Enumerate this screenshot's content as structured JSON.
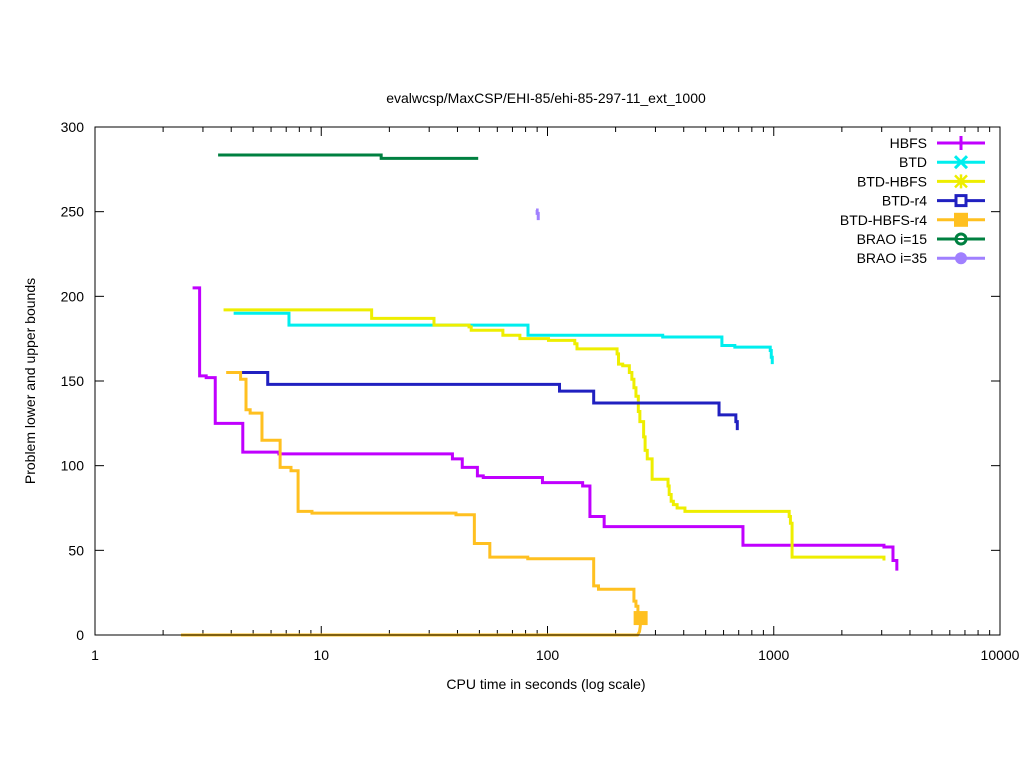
{
  "chart_data": {
    "type": "line",
    "title": "evalwcsp/MaxCSP/EHI-85/ehi-85-297-11_ext_1000",
    "xlabel": "CPU time in seconds (log scale)",
    "ylabel": "Problem lower and upper bounds",
    "xscale": "log",
    "xlim": [
      1,
      10000
    ],
    "ylim": [
      0,
      300
    ],
    "xticks": [
      {
        "v": 1,
        "label": "1"
      },
      {
        "v": 10,
        "label": "10"
      },
      {
        "v": 100,
        "label": "100"
      },
      {
        "v": 1000,
        "label": "1000"
      },
      {
        "v": 10000,
        "label": "10000"
      }
    ],
    "yticks": [
      {
        "v": 0,
        "label": "0"
      },
      {
        "v": 50,
        "label": "50"
      },
      {
        "v": 100,
        "label": "100"
      },
      {
        "v": 150,
        "label": "150"
      },
      {
        "v": 200,
        "label": "200"
      },
      {
        "v": 250,
        "label": "250"
      },
      {
        "v": 300,
        "label": "300"
      }
    ],
    "grid": false,
    "legend_position": "top-right",
    "series": [
      {
        "name": "HBFS",
        "color": "#c000ff",
        "marker": "plus",
        "points": [
          [
            2.7,
            205
          ],
          [
            2.9,
            153
          ],
          [
            3.1,
            152
          ],
          [
            3.4,
            125
          ],
          [
            4.5,
            108
          ],
          [
            6.5,
            107
          ],
          [
            38,
            104
          ],
          [
            42,
            99
          ],
          [
            49,
            94
          ],
          [
            52,
            93
          ],
          [
            95,
            90
          ],
          [
            143,
            88
          ],
          [
            154,
            70
          ],
          [
            178,
            64
          ],
          [
            731,
            53
          ],
          [
            3070,
            52
          ],
          [
            3365,
            44
          ],
          [
            3500,
            38
          ]
        ]
      },
      {
        "name": "BTD",
        "color": "#00eeee",
        "marker": "cross",
        "points": [
          [
            4.1,
            190
          ],
          [
            7.2,
            183
          ],
          [
            82,
            177
          ],
          [
            323,
            176
          ],
          [
            590,
            171
          ],
          [
            673,
            170
          ],
          [
            965,
            168
          ],
          [
            975,
            164
          ],
          [
            985,
            160
          ]
        ]
      },
      {
        "name": "BTD-HBFS",
        "color": "#eeee00",
        "marker": "star",
        "points": [
          [
            3.7,
            192
          ],
          [
            16.7,
            187
          ],
          [
            31.5,
            183
          ],
          [
            45,
            182
          ],
          [
            46,
            180
          ],
          [
            63.5,
            177
          ],
          [
            75.5,
            175
          ],
          [
            101,
            174
          ],
          [
            132,
            172
          ],
          [
            135,
            169
          ],
          [
            203,
            166
          ],
          [
            206,
            160
          ],
          [
            215,
            159
          ],
          [
            230,
            155
          ],
          [
            236,
            151
          ],
          [
            241,
            146
          ],
          [
            246,
            141
          ],
          [
            252,
            132
          ],
          [
            256,
            126
          ],
          [
            266,
            117
          ],
          [
            270,
            109
          ],
          [
            276,
            104
          ],
          [
            290,
            92
          ],
          [
            341,
            88
          ],
          [
            345,
            83
          ],
          [
            352,
            79
          ],
          [
            360,
            77
          ],
          [
            374,
            75
          ],
          [
            405,
            73
          ],
          [
            1170,
            70
          ],
          [
            1185,
            66
          ],
          [
            1205,
            46
          ],
          [
            3070,
            44
          ]
        ]
      },
      {
        "name": "BTD-r4",
        "color": "#2020c0",
        "marker": "box",
        "points": [
          [
            4.4,
            155
          ],
          [
            5.8,
            148
          ],
          [
            113,
            144
          ],
          [
            160,
            137
          ],
          [
            573,
            130
          ],
          [
            680,
            126
          ],
          [
            690,
            121
          ]
        ]
      },
      {
        "name": "BTD-HBFS-r4",
        "color": "#ffc020",
        "marker": "filled-box",
        "points": [
          [
            3.8,
            155
          ],
          [
            4.4,
            151
          ],
          [
            4.65,
            133
          ],
          [
            4.85,
            131
          ],
          [
            5.47,
            115
          ],
          [
            6.58,
            99
          ],
          [
            7.35,
            97
          ],
          [
            7.9,
            73
          ],
          [
            9.1,
            72
          ],
          [
            39.4,
            71
          ],
          [
            47.5,
            54
          ],
          [
            55.6,
            46
          ],
          [
            81.8,
            45
          ],
          [
            160,
            29
          ],
          [
            168,
            27
          ],
          [
            241,
            20
          ],
          [
            246,
            17
          ],
          [
            251,
            10
          ],
          [
            258,
            10
          ]
        ],
        "lower_bound": [
          [
            2.4,
            0
          ],
          [
            250,
            0
          ],
          [
            255,
            2
          ],
          [
            257,
            5
          ],
          [
            258,
            10
          ]
        ],
        "end_marker": [
          258,
          10
        ]
      },
      {
        "name": "BRAO i=15",
        "color": "#008040",
        "marker": "circle",
        "points": [
          [
            3.5,
            283.5
          ],
          [
            18.4,
            281.5
          ],
          [
            49.4,
            281.5
          ]
        ]
      },
      {
        "name": "BRAO i=35",
        "color": "#a080ff",
        "marker": "filled-circle",
        "points": [
          [
            89,
            251
          ],
          [
            90,
            249
          ],
          [
            91,
            245
          ]
        ]
      }
    ]
  }
}
